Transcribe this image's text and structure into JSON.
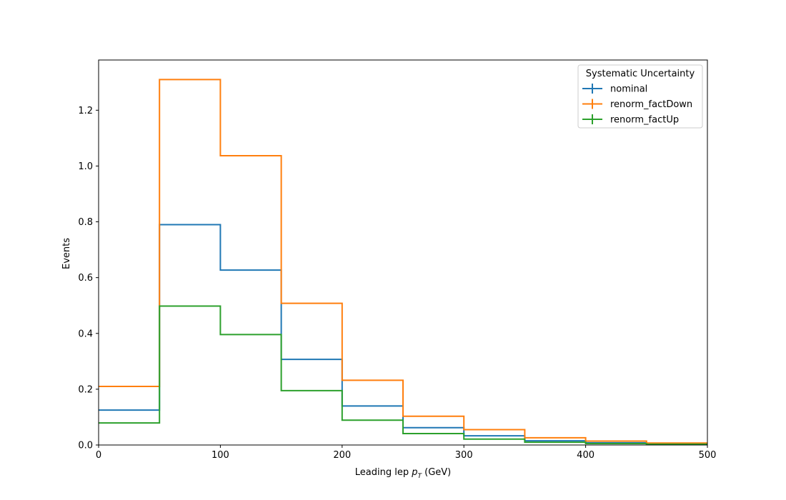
{
  "chart_data": {
    "type": "step",
    "xlabel": "Leading lep",
    "xlabel_symbol": "p",
    "xlabel_subscript": "T",
    "xlabel_unit": "(GeV)",
    "ylabel": "Events",
    "xlim": [
      0,
      500
    ],
    "ylim": [
      0,
      1.38
    ],
    "x_ticks": [
      "0",
      "100",
      "200",
      "300",
      "400",
      "500"
    ],
    "y_ticks": [
      "0.0",
      "0.2",
      "0.4",
      "0.6",
      "0.8",
      "1.0",
      "1.2"
    ],
    "grid": false,
    "legend_title": "Systematic Uncertainty",
    "legend_position": "top-right",
    "bin_edges": [
      0,
      50,
      100,
      150,
      200,
      250,
      300,
      350,
      400,
      450,
      500
    ],
    "series": [
      {
        "name": "nominal",
        "color": "#1f77b4",
        "values": [
          0.125,
          0.79,
          0.627,
          0.307,
          0.14,
          0.062,
          0.033,
          0.015,
          0.008,
          0.004
        ]
      },
      {
        "name": "renorm_factDown",
        "color": "#ff7f0e",
        "values": [
          0.21,
          1.31,
          1.037,
          0.508,
          0.232,
          0.103,
          0.055,
          0.026,
          0.014,
          0.007
        ]
      },
      {
        "name": "renorm_factUp",
        "color": "#2ca02c",
        "values": [
          0.079,
          0.498,
          0.396,
          0.195,
          0.089,
          0.041,
          0.021,
          0.01,
          0.005,
          0.003
        ]
      }
    ]
  }
}
